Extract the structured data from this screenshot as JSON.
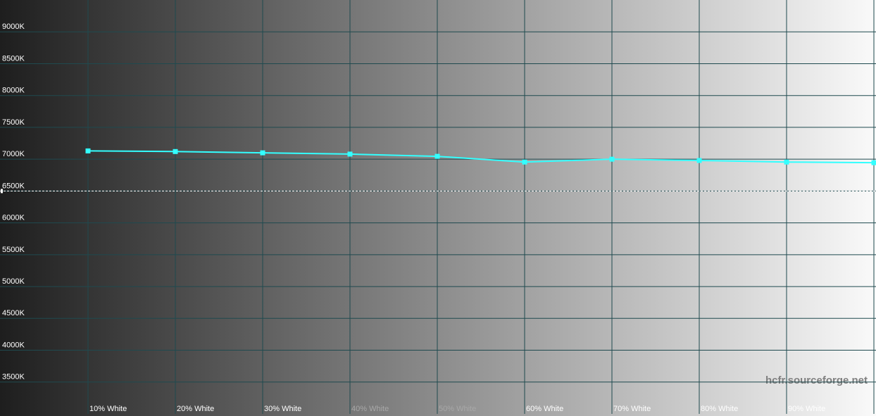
{
  "chart_data": {
    "type": "line",
    "categories": [
      "10% White",
      "20% White",
      "30% White",
      "40% White",
      "50% White",
      "60% White",
      "70% White",
      "80% White",
      "90% White",
      null
    ],
    "values": [
      7130,
      7120,
      7100,
      7080,
      7045,
      6955,
      7000,
      6980,
      6955,
      6945
    ],
    "color": "#33ffff",
    "ylim": [
      3000,
      9500
    ],
    "yticks": [
      {
        "value": 3500,
        "label": "3500K"
      },
      {
        "value": 4000,
        "label": "4000K"
      },
      {
        "value": 4500,
        "label": "4500K"
      },
      {
        "value": 5000,
        "label": "5000K"
      },
      {
        "value": 5500,
        "label": "5500K"
      },
      {
        "value": 6000,
        "label": "6000K"
      },
      {
        "value": 6500,
        "label": "6500K"
      },
      {
        "value": 7000,
        "label": "7000K"
      },
      {
        "value": 7500,
        "label": "7500K"
      },
      {
        "value": 8000,
        "label": "8000K"
      },
      {
        "value": 8500,
        "label": "8500K"
      },
      {
        "value": 9000,
        "label": "9000K"
      }
    ],
    "reference": 6500,
    "grid": true,
    "watermark": "hcfr.sourceforge.net"
  }
}
